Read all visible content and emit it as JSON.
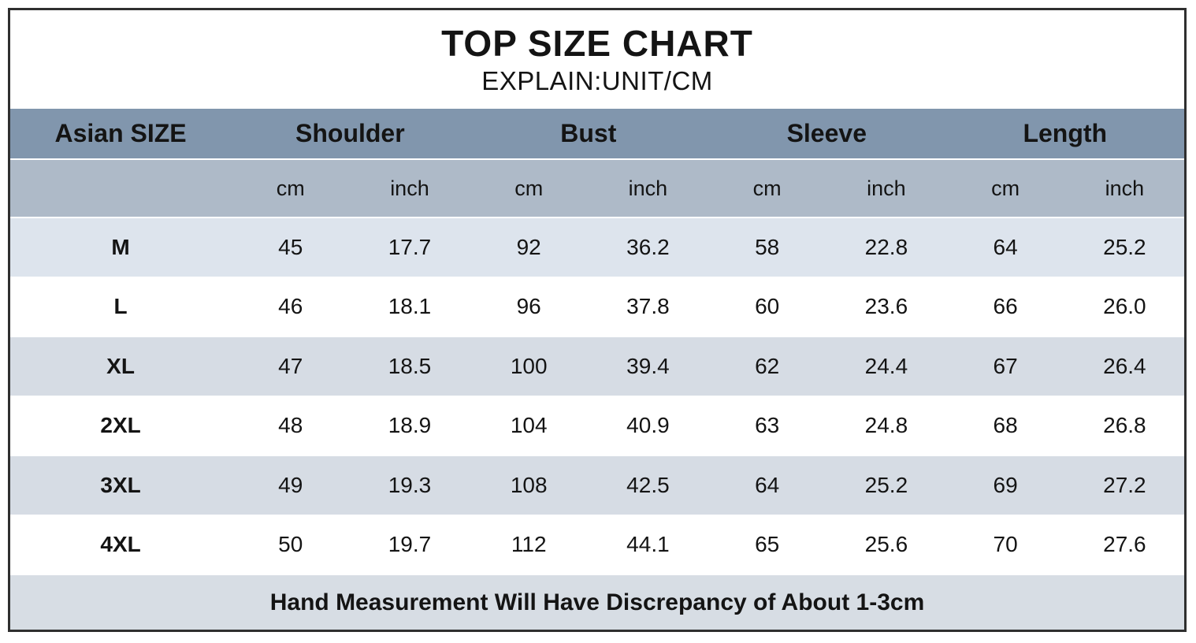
{
  "title": "TOP SIZE CHART",
  "subtitle": "EXPLAIN:UNIT/CM",
  "footer_note": "Hand Measurement Will Have Discrepancy of About 1-3cm",
  "colors": {
    "group_header_bg": "#8196ad",
    "unit_header_bg": "#aebac8",
    "row_tint_blue": "#dde4ed",
    "row_tint_gray": "#d6dce4",
    "row_white": "#ffffff",
    "footer_bg": "#d7dde4",
    "border": "#2f2f2f",
    "text": "#141414"
  },
  "chart_data": {
    "type": "table",
    "title": "TOP SIZE CHART",
    "subtitle": "EXPLAIN:UNIT/CM",
    "unit_note": "UNIT/CM",
    "group_headers": [
      "Asian SIZE",
      "Shoulder",
      "Bust",
      "Sleeve",
      "Length"
    ],
    "unit_headers": [
      "cm",
      "inch",
      "cm",
      "inch",
      "cm",
      "inch",
      "cm",
      "inch"
    ],
    "rows": [
      {
        "size": "M",
        "values": [
          "45",
          "17.7",
          "92",
          "36.2",
          "58",
          "22.8",
          "64",
          "25.2"
        ]
      },
      {
        "size": "L",
        "values": [
          "46",
          "18.1",
          "96",
          "37.8",
          "60",
          "23.6",
          "66",
          "26.0"
        ]
      },
      {
        "size": "XL",
        "values": [
          "47",
          "18.5",
          "100",
          "39.4",
          "62",
          "24.4",
          "67",
          "26.4"
        ]
      },
      {
        "size": "2XL",
        "values": [
          "48",
          "18.9",
          "104",
          "40.9",
          "63",
          "24.8",
          "68",
          "26.8"
        ]
      },
      {
        "size": "3XL",
        "values": [
          "49",
          "19.3",
          "108",
          "42.5",
          "64",
          "25.2",
          "69",
          "27.2"
        ]
      },
      {
        "size": "4XL",
        "values": [
          "50",
          "19.7",
          "112",
          "44.1",
          "65",
          "25.6",
          "70",
          "27.6"
        ]
      }
    ],
    "footnote": "Hand Measurement Will Have Discrepancy of About 1-3cm"
  }
}
